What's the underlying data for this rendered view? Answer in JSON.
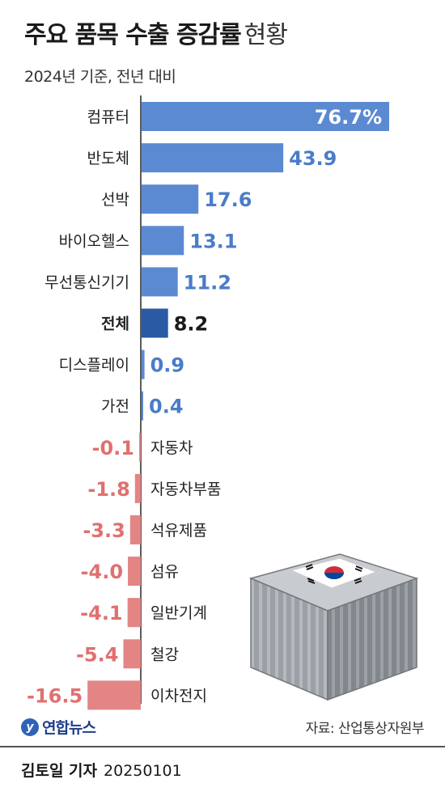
{
  "header": {
    "title_bold": "주요 품목 수출 증감률",
    "title_light": "현황",
    "subtitle": "2024년 기준, 전년 대비"
  },
  "chart_data": {
    "type": "bar",
    "orientation": "horizontal",
    "categories": [
      "컴퓨터",
      "반도체",
      "선박",
      "바이오헬스",
      "무선통신기기",
      "전체",
      "디스플레이",
      "가전",
      "자동차",
      "자동차부품",
      "석유제품",
      "섬유",
      "일반기계",
      "철강",
      "이차전지"
    ],
    "values": [
      76.7,
      43.9,
      17.6,
      13.1,
      11.2,
      8.2,
      0.9,
      0.4,
      -0.1,
      -1.8,
      -3.3,
      -4.0,
      -4.1,
      -5.4,
      -16.5
    ],
    "value_labels": [
      "76.7%",
      "43.9",
      "17.6",
      "13.1",
      "11.2",
      "8.2",
      "0.9",
      "0.4",
      "-0.1",
      "-1.8",
      "-3.3",
      "-4.0",
      "-4.1",
      "-5.4",
      "-16.5"
    ],
    "highlight": "전체",
    "unit": "%",
    "colors": {
      "positive": "#5b8ad2",
      "negative": "#e38585",
      "highlight": "#2a5aa3",
      "positive_text": "#4a7cc9",
      "negative_text": "#e07070"
    }
  },
  "footer": {
    "logo_text": "연합뉴스",
    "source": "자료: 산업통상자원부",
    "reporter": "김토일 기자",
    "date": "20250101"
  },
  "icons": {
    "logo": "yonhap-logo-icon",
    "illustration": "shipping-container-with-korean-flag"
  }
}
